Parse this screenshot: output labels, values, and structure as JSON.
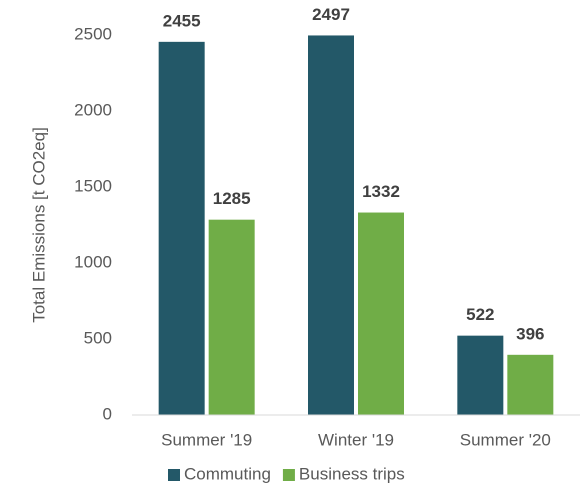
{
  "chart_data": {
    "type": "bar",
    "y_label": "Total Emissions [t CO2eq]",
    "categories": [
      "Summer '19",
      "Winter '19",
      "Summer '20"
    ],
    "series": [
      {
        "name": "Commuting",
        "color": "#235868",
        "values": [
          2455,
          2497,
          522
        ]
      },
      {
        "name": "Business trips",
        "color": "#70ad47",
        "values": [
          1285,
          1332,
          396
        ]
      }
    ],
    "ylim": [
      0,
      2500
    ],
    "yticks": [
      0,
      500,
      1000,
      1500,
      2000,
      2500
    ],
    "grid": false,
    "legend": "bottom"
  }
}
